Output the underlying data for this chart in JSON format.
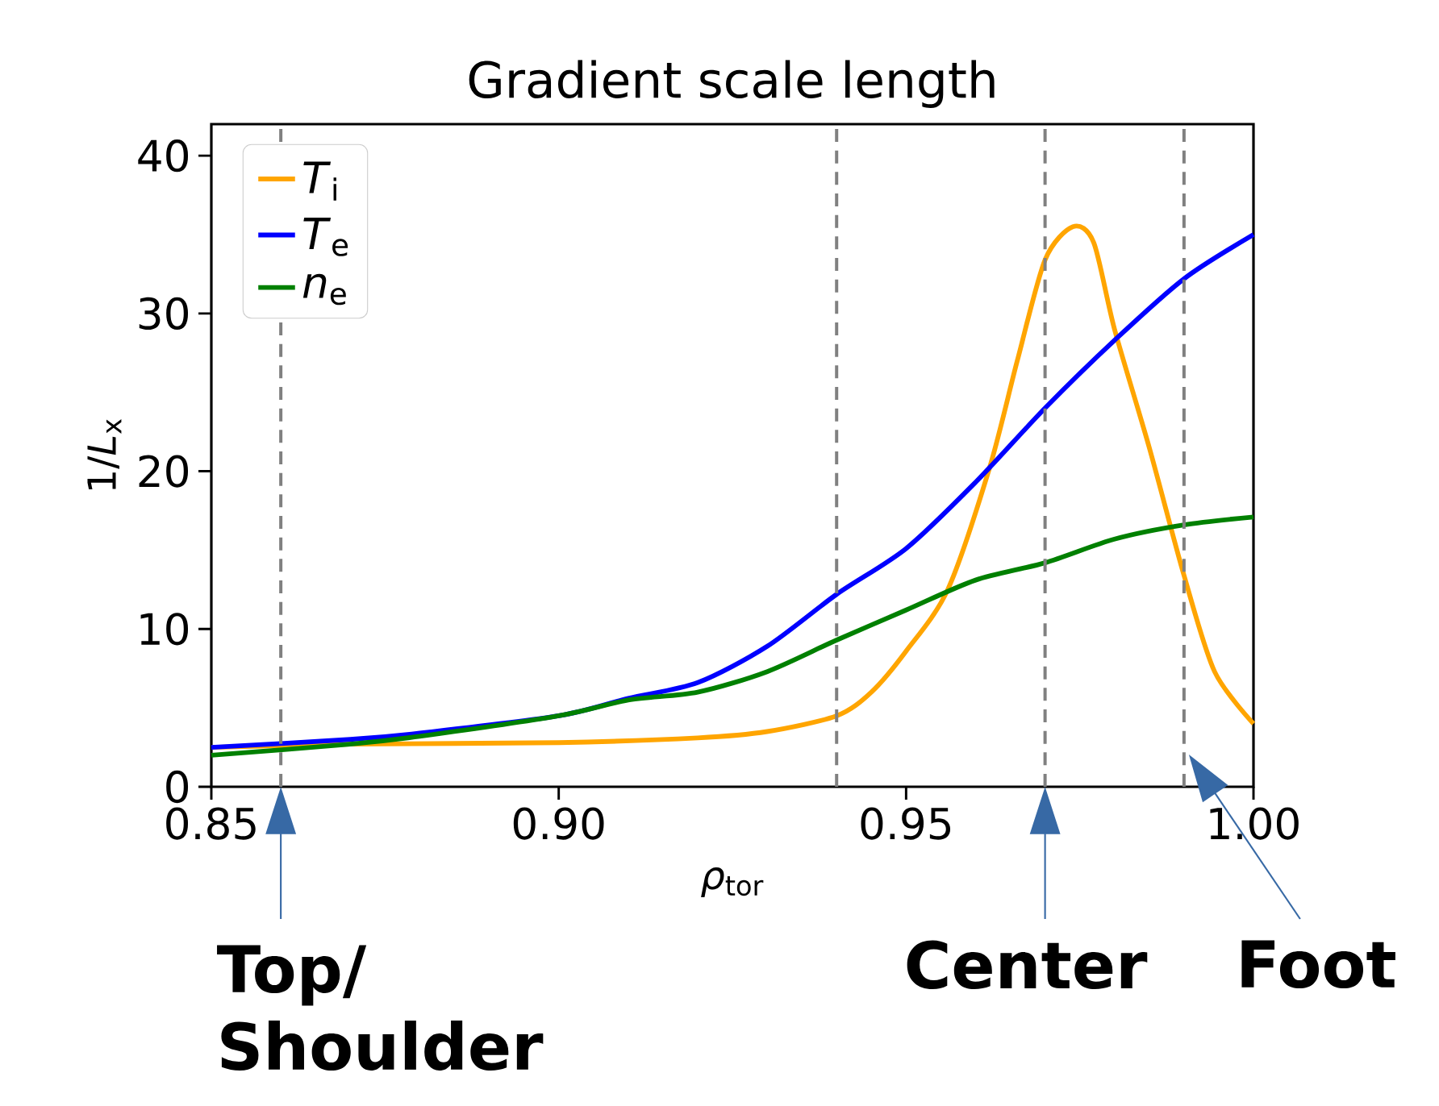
{
  "chart_data": {
    "type": "line",
    "title": "Gradient scale length",
    "xlabel": "*ρ*$_{tor}$",
    "ylabel": "1/*L*$_{x}$",
    "xlim": [
      0.85,
      1.0
    ],
    "ylim": [
      0,
      42
    ],
    "xticks": [
      {
        "value": 0.85,
        "label": "0.85"
      },
      {
        "value": 0.9,
        "label": "0.90"
      },
      {
        "value": 0.95,
        "label": "0.95"
      },
      {
        "value": 1.0,
        "label": "1.00"
      }
    ],
    "yticks": [
      0,
      10,
      20,
      30,
      40
    ],
    "grid": false,
    "legend": "top left",
    "line_style": "solid",
    "marker": "none",
    "series": [
      {
        "name": "*T*$_{i}$",
        "color": "#ffa500",
        "x": [
          0.85,
          0.87,
          0.9,
          0.92,
          0.93,
          0.94,
          0.945,
          0.95,
          0.956,
          0.962,
          0.966,
          0.97,
          0.974,
          0.977,
          0.98,
          0.985,
          0.99,
          0.9944,
          1.0
        ],
        "values": [
          2.5,
          2.7,
          2.8,
          3.1,
          3.5,
          4.5,
          6,
          8.6,
          12.5,
          20.2,
          27,
          33.4,
          35.5,
          34.5,
          29,
          21.5,
          13.4,
          7.3,
          4.0
        ]
      },
      {
        "name": "*T*$_{e}$",
        "color": "#0000ff",
        "x": [
          0.85,
          0.87,
          0.88,
          0.9,
          0.91,
          0.92,
          0.93,
          0.94,
          0.95,
          0.96,
          0.97,
          0.98,
          0.99,
          1.0
        ],
        "values": [
          2.5,
          3.0,
          3.4,
          4.5,
          5.6,
          6.6,
          8.9,
          12.2,
          15.1,
          19.3,
          24,
          28.3,
          32.2,
          35
        ]
      },
      {
        "name": "*n*$_{e}$",
        "color": "#008000",
        "x": [
          0.85,
          0.87,
          0.88,
          0.9,
          0.91,
          0.92,
          0.93,
          0.94,
          0.95,
          0.96,
          0.97,
          0.98,
          0.99,
          1.0
        ],
        "values": [
          2.0,
          2.7,
          3.2,
          4.5,
          5.5,
          6.0,
          7.3,
          9.3,
          11.2,
          13.1,
          14.2,
          15.7,
          16.6,
          17.1
        ]
      }
    ],
    "ref_lines": [
      {
        "axis": "x",
        "value": 0.86,
        "color": "#808080",
        "line_style": "dashed"
      },
      {
        "axis": "x",
        "value": 0.94,
        "color": "#808080",
        "line_style": "dashed"
      },
      {
        "axis": "x",
        "value": 0.97,
        "color": "#808080",
        "line_style": "dashed"
      },
      {
        "axis": "x",
        "value": 0.99,
        "color": "#808080",
        "line_style": "dashed"
      }
    ],
    "annotations": [
      {
        "text": "Top/ Shoulder",
        "x": 0.86,
        "y": 0
      },
      {
        "text": "Center",
        "x": 0.97,
        "y": 0
      },
      {
        "text": "Foot",
        "x": 0.99,
        "y": 0
      }
    ]
  }
}
